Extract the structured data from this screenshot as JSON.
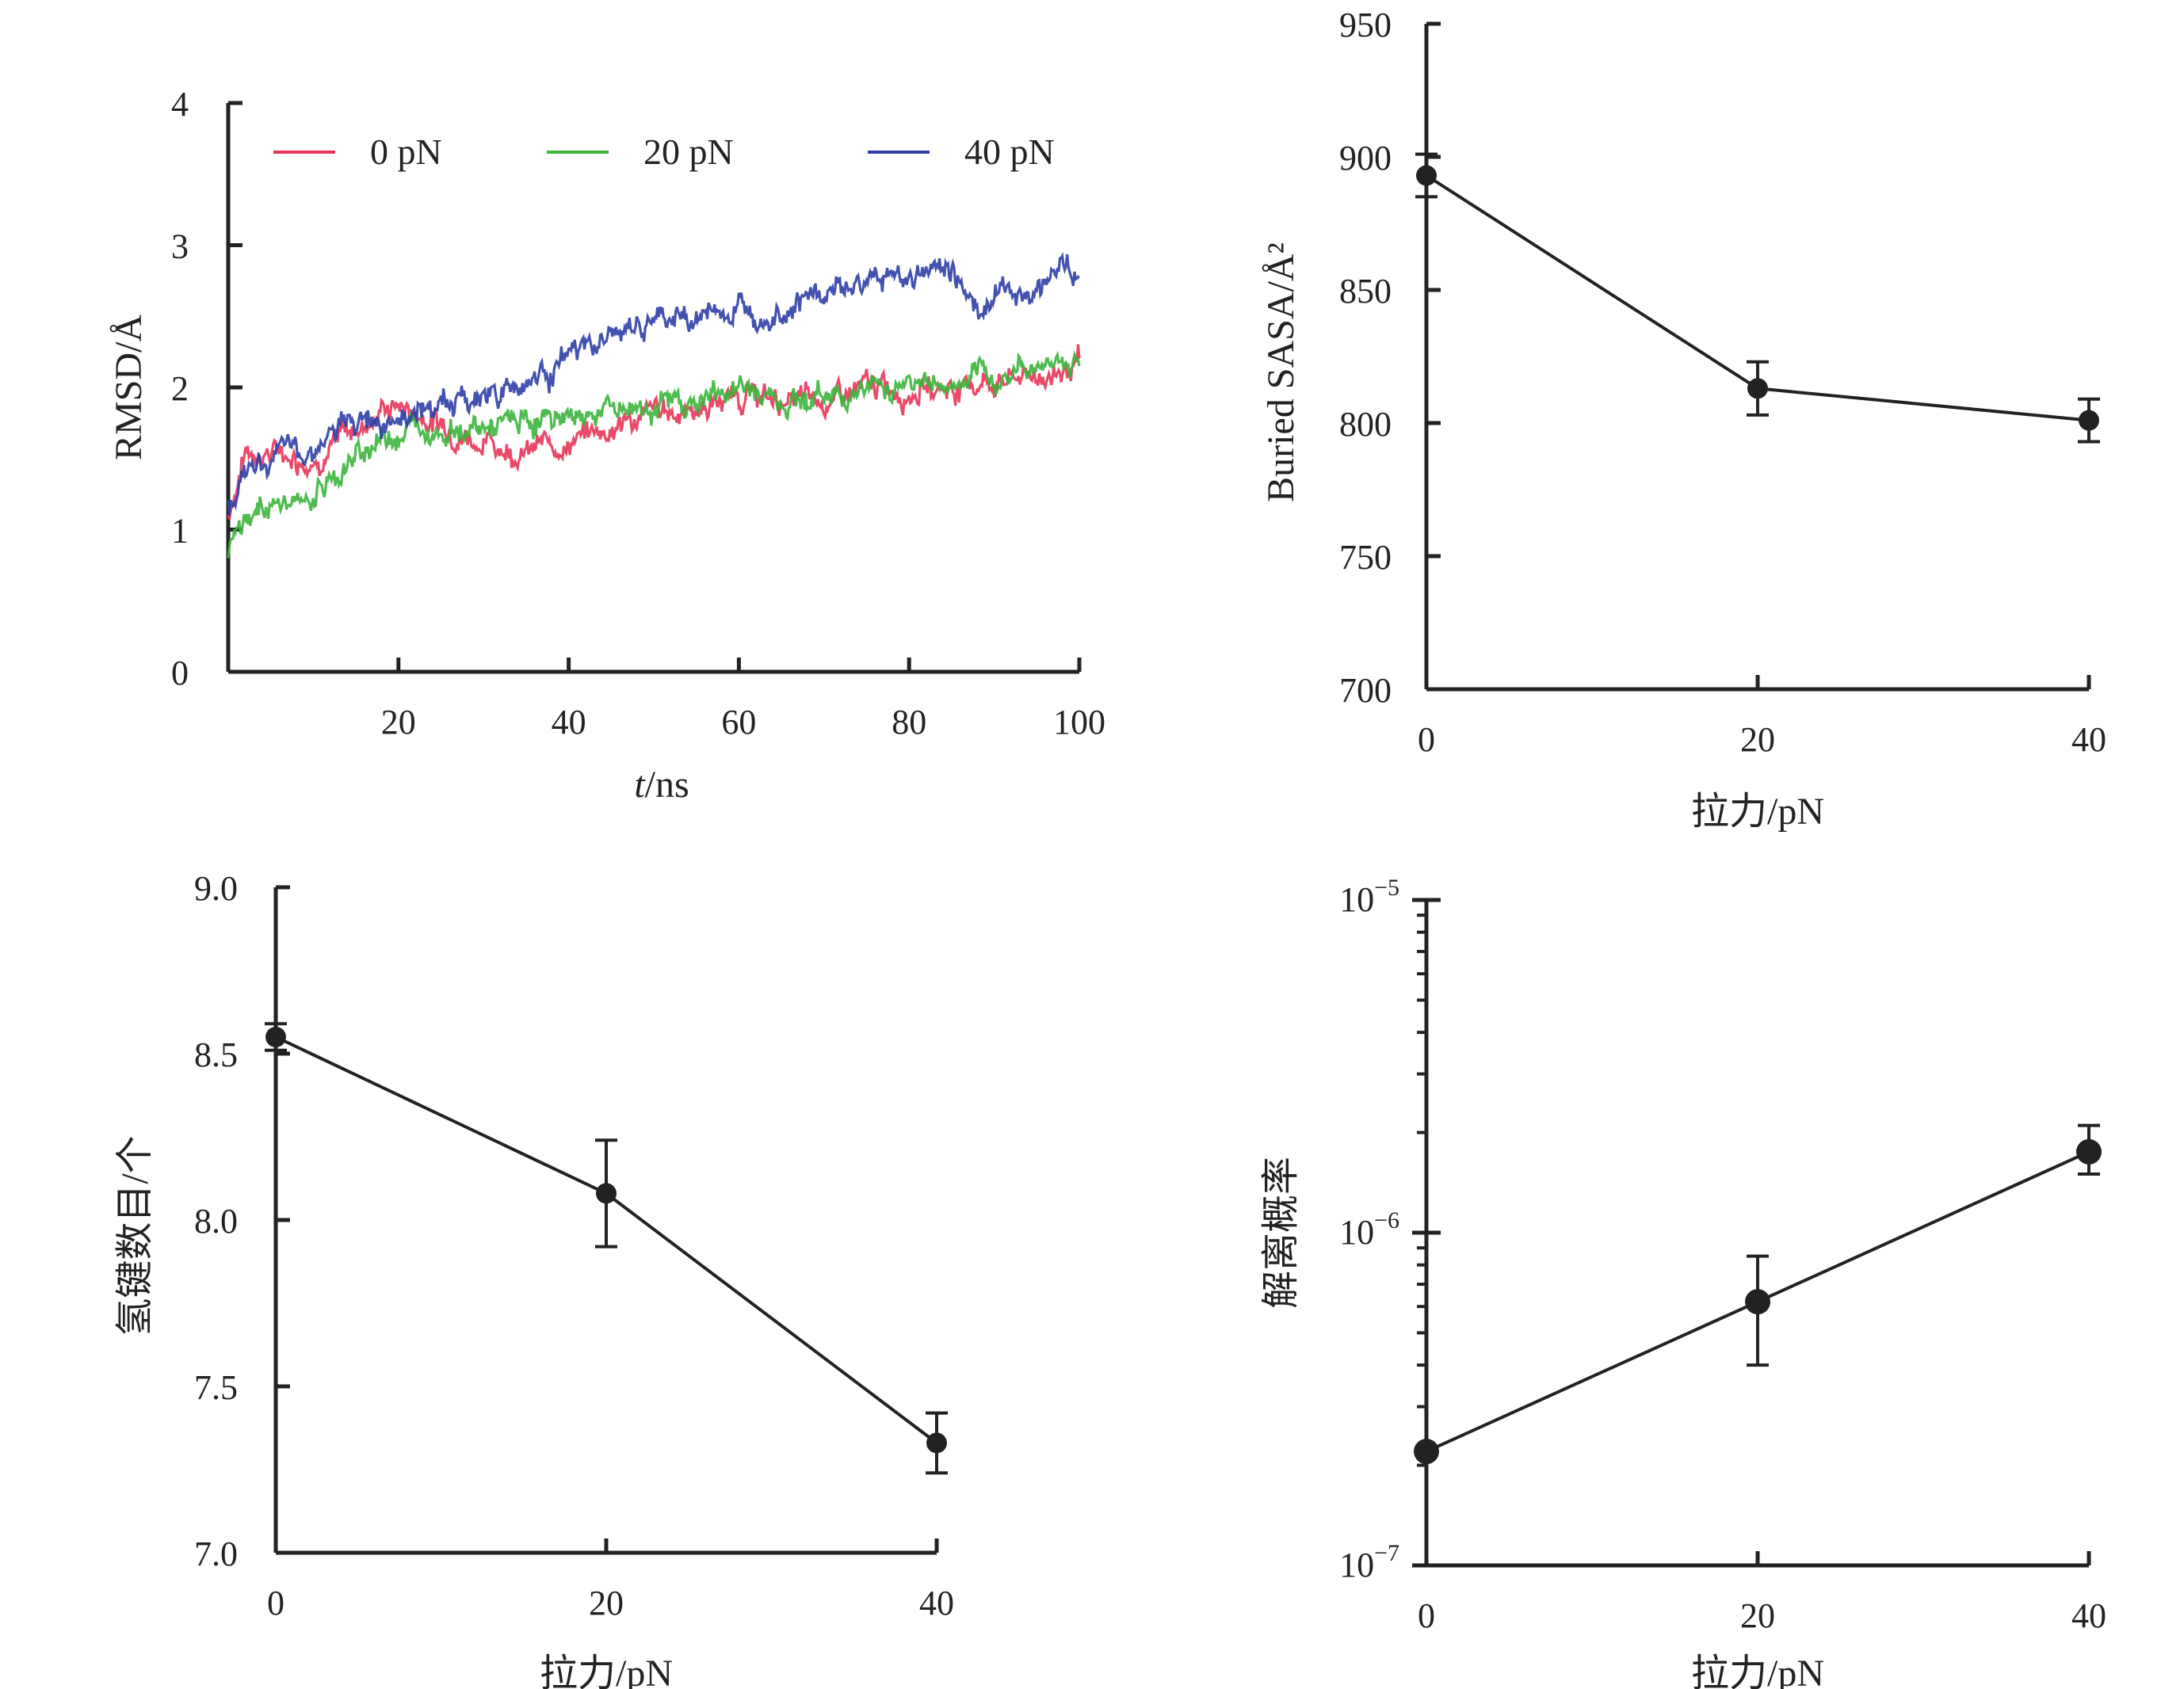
{
  "chart_data": [
    {
      "id": "rmsd",
      "type": "line",
      "xlabel_italic": "t",
      "xlabel_rest": "/ns",
      "ylabel": "RMSD/Å",
      "xlim": [
        0,
        100
      ],
      "ylim": [
        0,
        4
      ],
      "xticks": [
        20,
        40,
        60,
        80,
        100
      ],
      "yticks": [
        0,
        1,
        2,
        3,
        4
      ],
      "legend": {
        "placement": "top",
        "items": [
          "0 pN",
          "20 pN",
          "40 pN"
        ]
      },
      "series": [
        {
          "name": "0 pN",
          "color": "#e8365a",
          "x": [
            0,
            2,
            5,
            8,
            10,
            12,
            15,
            18,
            20,
            22,
            25,
            28,
            30,
            35,
            40,
            45,
            50,
            55,
            60,
            65,
            70,
            75,
            80,
            85,
            90,
            95,
            100
          ],
          "y": [
            1.1,
            1.55,
            1.55,
            1.52,
            1.5,
            1.6,
            1.7,
            1.85,
            1.88,
            1.82,
            1.75,
            1.68,
            1.62,
            1.55,
            1.62,
            1.72,
            1.82,
            1.85,
            1.95,
            1.9,
            1.9,
            1.98,
            2.0,
            2.0,
            2.05,
            2.08,
            2.15
          ]
        },
        {
          "name": "20 pN",
          "color": "#3cb53c",
          "x": [
            0,
            2,
            5,
            8,
            10,
            12,
            15,
            18,
            20,
            22,
            25,
            28,
            30,
            35,
            40,
            45,
            50,
            55,
            60,
            65,
            70,
            75,
            80,
            85,
            90,
            95,
            100
          ],
          "y": [
            0.85,
            1.05,
            1.2,
            1.15,
            1.25,
            1.35,
            1.5,
            1.65,
            1.7,
            1.75,
            1.72,
            1.7,
            1.7,
            1.75,
            1.8,
            1.85,
            1.88,
            1.9,
            2.0,
            1.92,
            1.95,
            2.0,
            2.05,
            2.0,
            2.05,
            2.18,
            2.2
          ]
        },
        {
          "name": "40 pN",
          "color": "#2f3fa6",
          "x": [
            0,
            2,
            5,
            8,
            10,
            12,
            15,
            18,
            20,
            22,
            25,
            28,
            30,
            35,
            40,
            45,
            50,
            55,
            60,
            65,
            70,
            75,
            80,
            85,
            88,
            90,
            95,
            98,
            100
          ],
          "y": [
            1.2,
            1.4,
            1.5,
            1.55,
            1.6,
            1.65,
            1.75,
            1.82,
            1.85,
            1.82,
            1.88,
            1.9,
            1.95,
            2.05,
            2.2,
            2.35,
            2.45,
            2.5,
            2.55,
            2.6,
            2.65,
            2.75,
            2.8,
            2.85,
            2.55,
            2.65,
            2.7,
            2.9,
            2.75
          ]
        }
      ]
    },
    {
      "id": "sasa",
      "type": "line",
      "xlabel": "拉力/pN",
      "ylabel": "Buried SASA/Å²",
      "xlim": [
        0,
        40
      ],
      "ylim": [
        700,
        950
      ],
      "xticks": [
        0,
        20,
        40
      ],
      "yticks": [
        700,
        750,
        800,
        850,
        900,
        950
      ],
      "x": [
        0,
        20,
        40
      ],
      "y": [
        893,
        813,
        801
      ],
      "yerr": [
        8,
        10,
        8
      ]
    },
    {
      "id": "hbond",
      "type": "line",
      "xlabel": "拉力/pN",
      "ylabel": "氢键数目/个",
      "xlim": [
        0,
        40
      ],
      "ylim": [
        7.0,
        9.0
      ],
      "xticks": [
        0,
        20,
        40
      ],
      "yticks": [
        7.0,
        7.5,
        8.0,
        8.5,
        9.0
      ],
      "ytick_labels": [
        "7.0",
        "7.5",
        "8.0",
        "8.5",
        "9.0"
      ],
      "x": [
        0,
        20,
        40
      ],
      "y": [
        8.55,
        8.08,
        7.33
      ],
      "yerr": [
        0.04,
        0.16,
        0.09
      ]
    },
    {
      "id": "dissoc",
      "type": "line",
      "log_y": true,
      "xlabel": "拉力/pN",
      "ylabel": "解离概率",
      "xlim": [
        0,
        40
      ],
      "ylim": [
        1e-07,
        1e-05
      ],
      "xticks": [
        0,
        20,
        40
      ],
      "ytick_labels": [
        {
          "base": "10",
          "exp": "−7"
        },
        {
          "base": "10",
          "exp": "−6"
        },
        {
          "base": "10",
          "exp": "−5"
        }
      ],
      "x": [
        0,
        20,
        40
      ],
      "y": [
        2.2e-07,
        6.2e-07,
        1.75e-06
      ],
      "ylow": [
        2.2e-07,
        4e-07,
        1.5e-06
      ],
      "yhigh": [
        2.2e-07,
        8.5e-07,
        2.1e-06
      ]
    }
  ]
}
